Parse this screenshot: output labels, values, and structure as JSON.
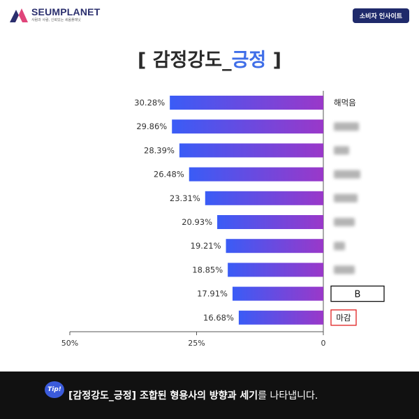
{
  "header": {
    "logo_name": "SEUMPLANET",
    "logo_tagline": "사람과 사람, 신뢰있는 세움플래닛",
    "badge": "소비자 인사이트"
  },
  "title": {
    "open": "[ 감정강도_",
    "accent": "긍정",
    "close": " ]"
  },
  "chart_data": {
    "type": "bar",
    "orientation": "horizontal",
    "direction": "right-to-left",
    "categories": [
      "해먹음",
      "",
      "",
      "",
      "",
      "",
      "",
      "",
      "B",
      "마감"
    ],
    "blurred_categories": [
      false,
      true,
      true,
      true,
      true,
      true,
      true,
      true,
      false,
      false
    ],
    "boxed_categories": [
      "none",
      "none",
      "none",
      "none",
      "none",
      "none",
      "none",
      "none",
      "black",
      "red"
    ],
    "values": [
      30.28,
      29.86,
      28.39,
      26.48,
      23.31,
      20.93,
      19.21,
      18.85,
      17.91,
      16.68
    ],
    "data_labels": [
      "30.28%",
      "29.86%",
      "28.39%",
      "26.48%",
      "23.31%",
      "20.93%",
      "19.21%",
      "18.85%",
      "17.91%",
      "16.68%"
    ],
    "xlim": [
      0,
      50
    ],
    "xticks": [
      "50%",
      "25%",
      "0"
    ],
    "bar_gradient": [
      "#3a5cf6",
      "#9a38c9"
    ],
    "grid": false
  },
  "footer": {
    "tip": "Tip!",
    "text_bold": "[감정강도_긍정] 조합된 형용사의 방향과 세기",
    "text_rest": "를 나타냅니다."
  },
  "colors": {
    "brand": "#2b2f6e",
    "accent": "#3f6ee8",
    "footer_bg": "#111111"
  }
}
